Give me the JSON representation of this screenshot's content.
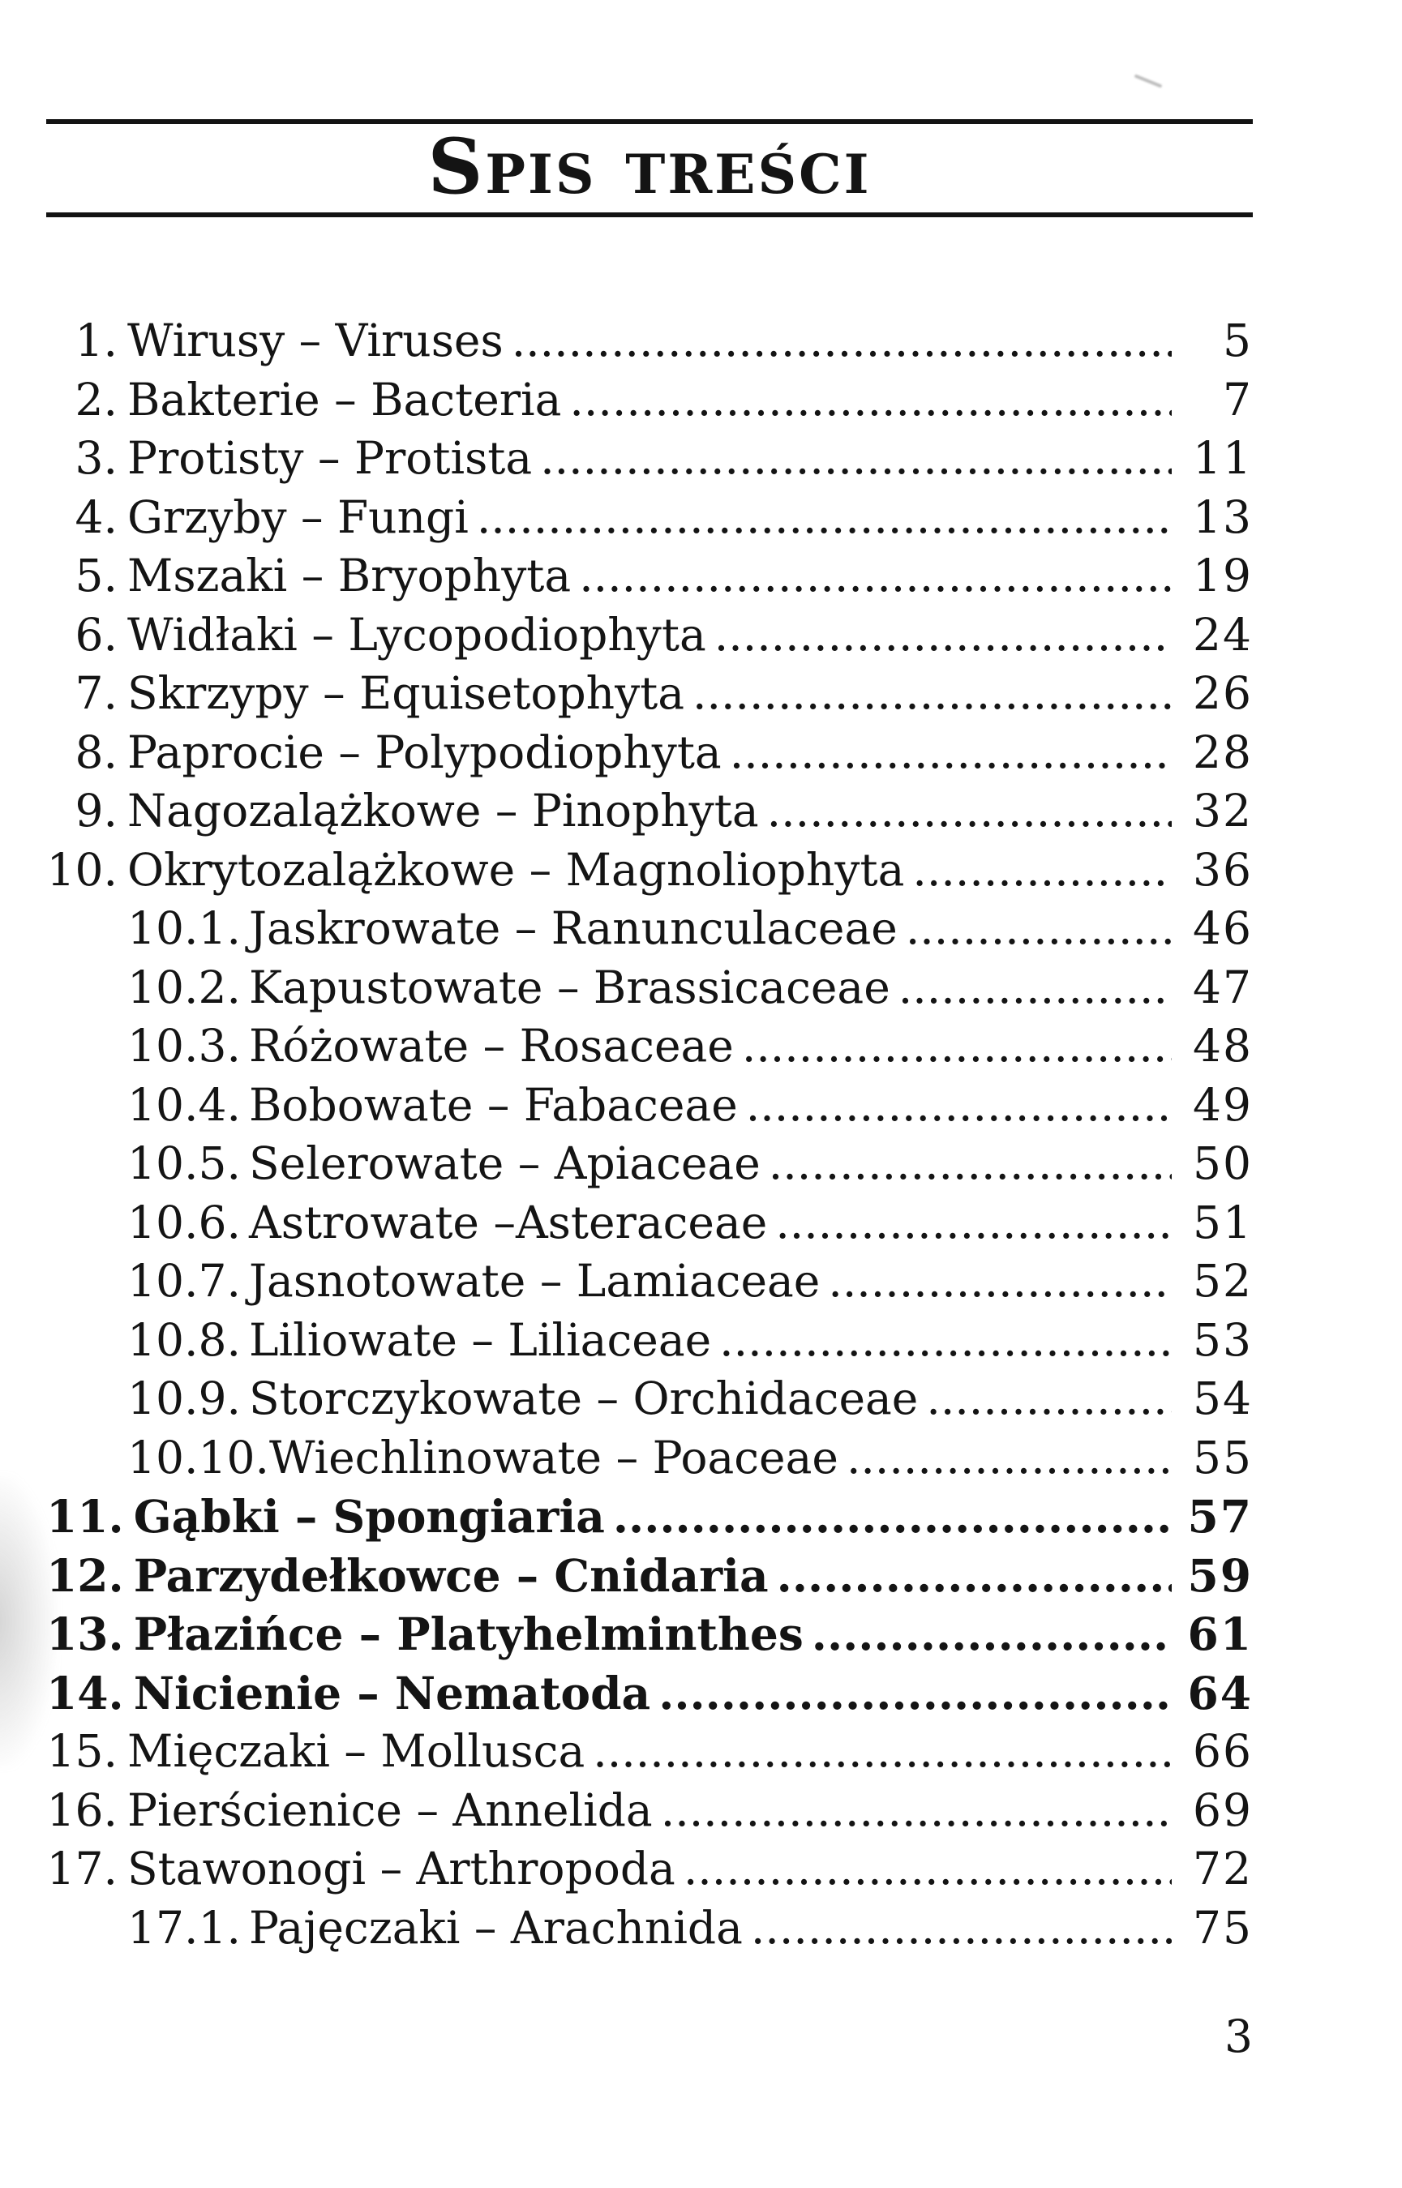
{
  "page": {
    "title": "Spis treści",
    "page_number": "3"
  },
  "colors": {
    "ink": "#141414",
    "paper": "#ffffff"
  },
  "toc": [
    {
      "num": "1.",
      "label": "Wirusy – Viruses",
      "page": "5",
      "level": 1,
      "bold": false
    },
    {
      "num": "2.",
      "label": "Bakterie – Bacteria",
      "page": "7",
      "level": 1,
      "bold": false
    },
    {
      "num": "3.",
      "label": "Protisty – Protista",
      "page": "11",
      "level": 1,
      "bold": false
    },
    {
      "num": "4.",
      "label": "Grzyby – Fungi",
      "page": "13",
      "level": 1,
      "bold": false
    },
    {
      "num": "5.",
      "label": "Mszaki – Bryophyta",
      "page": "19",
      "level": 1,
      "bold": false
    },
    {
      "num": "6.",
      "label": "Widłaki – Lycopodiophyta",
      "page": "24",
      "level": 1,
      "bold": false
    },
    {
      "num": "7.",
      "label": "Skrzypy – Equisetophyta",
      "page": "26",
      "level": 1,
      "bold": false
    },
    {
      "num": "8.",
      "label": "Paprocie – Polypodiophyta",
      "page": "28",
      "level": 1,
      "bold": false
    },
    {
      "num": "9.",
      "label": "Nagozalążkowe – Pinophyta",
      "page": "32",
      "level": 1,
      "bold": false
    },
    {
      "num": "10.",
      "label": "Okrytozalążkowe – Magnoliophyta",
      "page": "36",
      "level": 1,
      "bold": false
    },
    {
      "num": "10.1.",
      "label": "Jaskrowate – Ranunculaceae",
      "page": "46",
      "level": 2,
      "bold": false
    },
    {
      "num": "10.2.",
      "label": "Kapustowate – Brassicaceae",
      "page": "47",
      "level": 2,
      "bold": false
    },
    {
      "num": "10.3.",
      "label": "Różowate – Rosaceae",
      "page": "48",
      "level": 2,
      "bold": false
    },
    {
      "num": "10.4.",
      "label": "Bobowate – Fabaceae",
      "page": "49",
      "level": 2,
      "bold": false
    },
    {
      "num": "10.5.",
      "label": "Selerowate – Apiaceae",
      "page": "50",
      "level": 2,
      "bold": false
    },
    {
      "num": "10.6.",
      "label": "Astrowate –Asteraceae",
      "page": "51",
      "level": 2,
      "bold": false
    },
    {
      "num": "10.7.",
      "label": "Jasnotowate – Lamiaceae",
      "page": "52",
      "level": 2,
      "bold": false
    },
    {
      "num": "10.8.",
      "label": "Liliowate – Liliaceae",
      "page": "53",
      "level": 2,
      "bold": false
    },
    {
      "num": "10.9.",
      "label": "Storczykowate – Orchidaceae",
      "page": "54",
      "level": 2,
      "bold": false
    },
    {
      "num": "10.10.",
      "label": "Wiechlinowate – Poaceae",
      "page": "55",
      "level": 2,
      "bold": false
    },
    {
      "num": "11.",
      "label": "Gąbki – Spongiaria",
      "page": "57",
      "level": 1,
      "bold": true
    },
    {
      "num": "12.",
      "label": "Parzydełkowce – Cnidaria",
      "page": "59",
      "level": 1,
      "bold": true
    },
    {
      "num": "13.",
      "label": "Płazińce – Platyhelminthes",
      "page": "61",
      "level": 1,
      "bold": true
    },
    {
      "num": "14.",
      "label": "Nicienie – Nematoda",
      "page": "64",
      "level": 1,
      "bold": true
    },
    {
      "num": "15.",
      "label": "Mięczaki – Mollusca",
      "page": "66",
      "level": 1,
      "bold": false
    },
    {
      "num": "16.",
      "label": "Pierścienice – Annelida",
      "page": "69",
      "level": 1,
      "bold": false
    },
    {
      "num": "17.",
      "label": "Stawonogi – Arthropoda",
      "page": "72",
      "level": 1,
      "bold": false
    },
    {
      "num": "17.1.",
      "label": "Pajęczaki – Arachnida",
      "page": "75",
      "level": 2,
      "bold": false
    }
  ]
}
